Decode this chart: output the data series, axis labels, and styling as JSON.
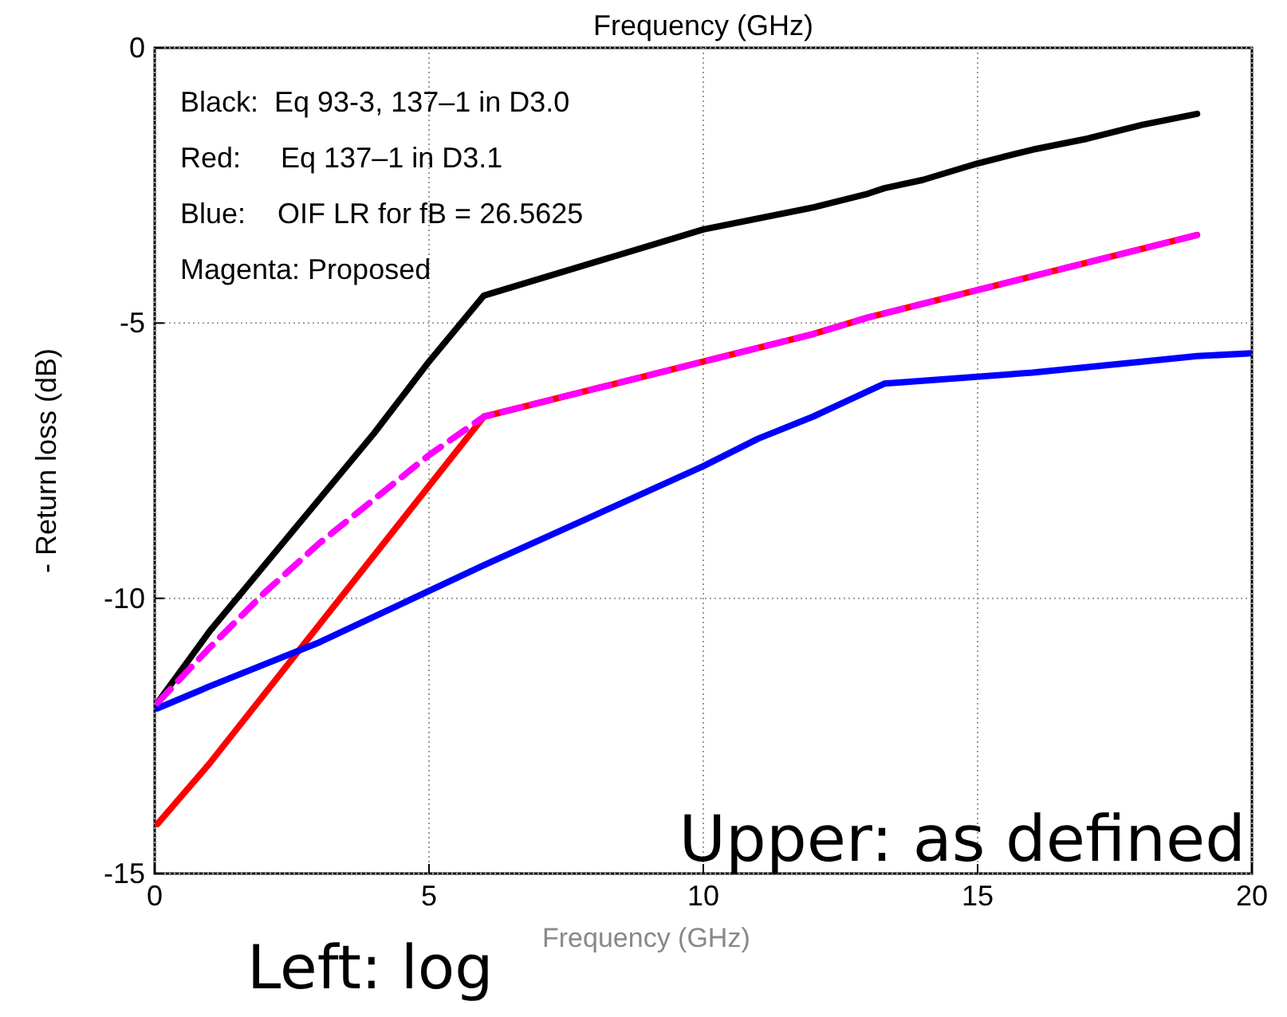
{
  "chart_data": {
    "type": "line",
    "title": "Frequency (GHz)",
    "xlabel": "Frequency (GHz)",
    "ylabel": "- Return loss (dB)",
    "xlim": [
      0,
      20
    ],
    "ylim": [
      -15,
      0
    ],
    "xticks": [
      0,
      5,
      10,
      15,
      20
    ],
    "yticks": [
      0,
      -5,
      -10,
      -15
    ],
    "grid": true,
    "marker": "none",
    "line_style": "solid",
    "series": [
      {
        "color": "#000000",
        "x": [
          0.05,
          1,
          2.5,
          4,
          5,
          6,
          8,
          10,
          12,
          13,
          13.3,
          14,
          15,
          16,
          17,
          18,
          19
        ],
        "values": [
          -11.9,
          -10.6,
          -8.8,
          -7.0,
          -5.7,
          -4.5,
          -3.9,
          -3.3,
          -2.9,
          -2.65,
          -2.55,
          -2.4,
          -2.1,
          -1.85,
          -1.65,
          -1.4,
          -1.2
        ]
      },
      {
        "color": "#ff0000",
        "x": [
          0.05,
          1,
          6,
          8,
          10,
          12,
          13,
          15,
          17,
          19
        ],
        "values": [
          -14.1,
          -13.0,
          -6.7,
          -6.2,
          -5.7,
          -5.2,
          -4.9,
          -4.4,
          -3.9,
          -3.4
        ]
      },
      {
        "color": "#0000ff",
        "x": [
          0.05,
          1,
          3,
          6,
          8,
          10,
          11,
          12,
          13.3,
          14,
          16,
          18,
          19,
          20
        ],
        "values": [
          -12.0,
          -11.6,
          -10.8,
          -9.4,
          -8.5,
          -7.6,
          -7.1,
          -6.7,
          -6.1,
          -6.05,
          -5.9,
          -5.7,
          -5.6,
          -5.55
        ]
      },
      {
        "color": "#ff00ff",
        "line_style": "dashed",
        "x": [
          0.05,
          1,
          2,
          3,
          4,
          5,
          6,
          8,
          10,
          12,
          13,
          15,
          17,
          19
        ],
        "values": [
          -11.9,
          -10.9,
          -9.9,
          -9.0,
          -8.2,
          -7.4,
          -6.7,
          -6.2,
          -5.7,
          -5.2,
          -4.9,
          -4.4,
          -3.9,
          -3.4
        ]
      }
    ],
    "annotations": [
      "Black:  Eq 93-3, 137–1 in D3.0",
      "Red:     Eq 137–1 in D3.1",
      "Blue:    OIF LR for fB = 26.5625",
      "Magenta: Proposed",
      "Upper: as defined",
      "Left: log"
    ]
  }
}
